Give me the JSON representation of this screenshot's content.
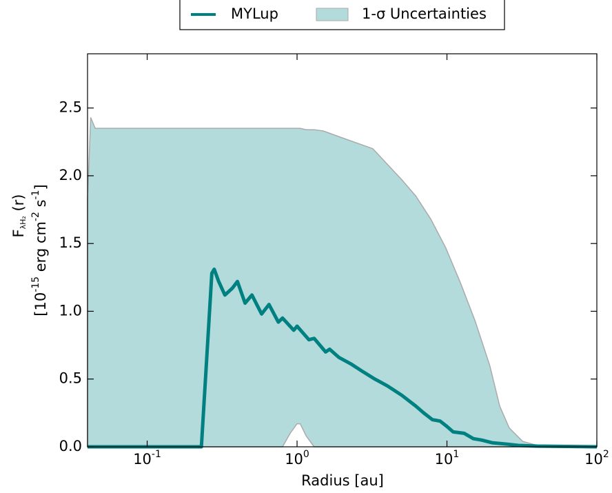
{
  "chart_data": {
    "type": "line",
    "ylabel": [
      [
        {
          "text": "F"
        },
        {
          "text": "λH₂",
          "shift": "sub"
        },
        {
          "text": " (r)"
        }
      ],
      [
        {
          "text": "[10"
        },
        {
          "text": "-15",
          "shift": "super"
        },
        {
          "text": " erg cm"
        },
        {
          "text": "-2",
          "shift": "super"
        },
        {
          "text": " s"
        },
        {
          "text": "-1",
          "shift": "super"
        },
        {
          "text": "]"
        }
      ]
    ],
    "xlabel": "Radius [au]",
    "xscale": "log",
    "xlim": [
      0.04,
      100
    ],
    "xticks": [
      {
        "value": 0.1,
        "label": "10",
        "exponent": "-1"
      },
      {
        "value": 1,
        "label": "10",
        "exponent": "0"
      },
      {
        "value": 10,
        "label": "10",
        "exponent": "1"
      },
      {
        "value": 100,
        "label": "10",
        "exponent": "2"
      }
    ],
    "ylim": [
      0,
      2.9
    ],
    "yticks": [
      {
        "value": 0,
        "label": "0.0"
      },
      0.5,
      {
        "value": 1,
        "label": "1.0"
      },
      1.5,
      {
        "value": 2,
        "label": "2.0"
      },
      2.5
    ],
    "legend": "top",
    "band": {
      "name": "1-σ Uncertainties",
      "color": "#b3dbdb",
      "edge": "#aaaaaa",
      "x": [
        0.04,
        0.042,
        0.045,
        0.1,
        0.3,
        0.8,
        0.9,
        1.0,
        1.05,
        1.15,
        1.3,
        1.5,
        2,
        3.2,
        5,
        6.2,
        7.8,
        9.8,
        12.3,
        15.4,
        19.3,
        22.5,
        26,
        32,
        40,
        100
      ],
      "upper": [
        1.82,
        2.43,
        2.35,
        2.35,
        2.35,
        2.35,
        2.35,
        2.35,
        2.35,
        2.34,
        2.34,
        2.33,
        2.28,
        2.2,
        1.97,
        1.85,
        1.68,
        1.47,
        1.21,
        0.93,
        0.6,
        0.3,
        0.14,
        0.04,
        0.01,
        0
      ],
      "lower": [
        0,
        0,
        0,
        0,
        0,
        0,
        0.1,
        0.17,
        0.17,
        0.08,
        0,
        0,
        0,
        0,
        0,
        0,
        0,
        0,
        0,
        0,
        0,
        0,
        0,
        0,
        0,
        0
      ]
    },
    "series": [
      {
        "name": "MYLup",
        "color": "#008080",
        "x": [
          0.04,
          0.23,
          0.27,
          0.28,
          0.3,
          0.33,
          0.37,
          0.4,
          0.45,
          0.5,
          0.58,
          0.65,
          0.75,
          0.8,
          0.95,
          1.0,
          1.2,
          1.3,
          1.55,
          1.65,
          1.9,
          2.3,
          2.7,
          3.3,
          4,
          5,
          6.2,
          7,
          8,
          9,
          10,
          11,
          13,
          15,
          17,
          20,
          25,
          30,
          40,
          100
        ],
        "values": [
          0,
          0,
          1.28,
          1.31,
          1.22,
          1.12,
          1.17,
          1.22,
          1.06,
          1.12,
          0.98,
          1.05,
          0.92,
          0.95,
          0.86,
          0.89,
          0.79,
          0.8,
          0.7,
          0.72,
          0.66,
          0.61,
          0.56,
          0.5,
          0.45,
          0.38,
          0.3,
          0.25,
          0.2,
          0.19,
          0.15,
          0.11,
          0.1,
          0.06,
          0.05,
          0.03,
          0.02,
          0.01,
          0.005,
          0
        ]
      }
    ]
  }
}
